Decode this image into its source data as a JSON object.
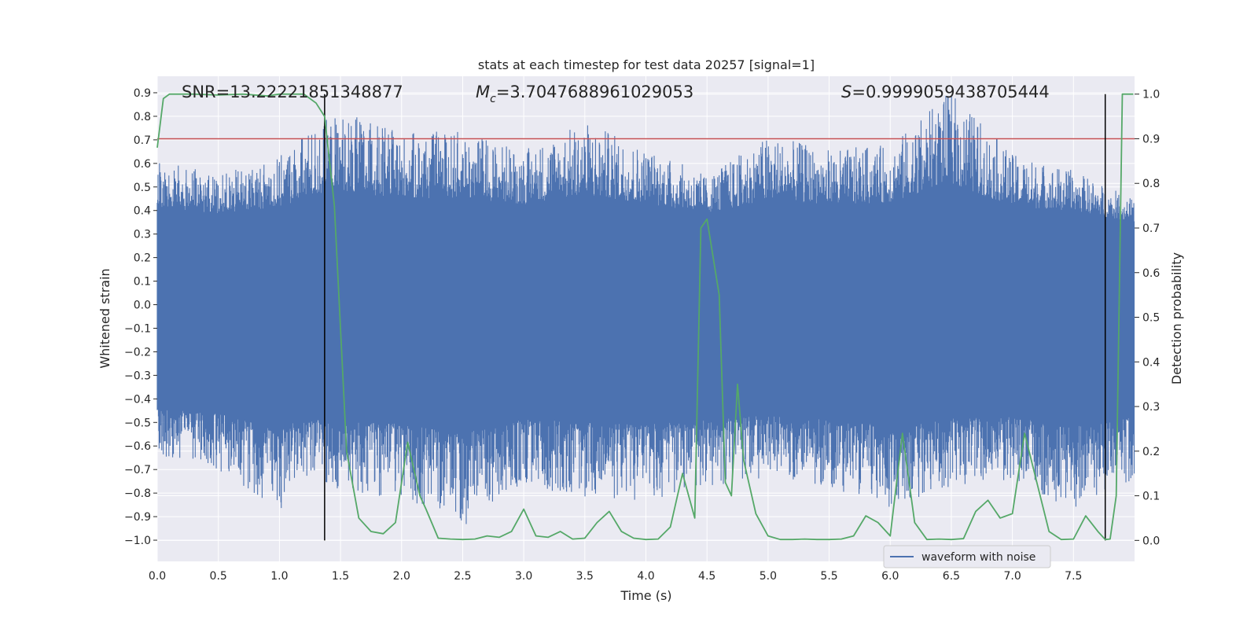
{
  "chart_data": {
    "type": "line",
    "title": "stats at each timestep for test data 20257 [signal=1]",
    "xlabel": "Time (s)",
    "ylabel": "Whitened strain",
    "y2label": "Detection probability",
    "xlim": [
      0.0,
      8.0
    ],
    "ylim": [
      -1.09,
      0.97
    ],
    "y2lim": [
      -0.047,
      1.04
    ],
    "x_ticks": [
      0.0,
      0.5,
      1.0,
      1.5,
      2.0,
      2.5,
      3.0,
      3.5,
      4.0,
      4.5,
      5.0,
      5.5,
      6.0,
      6.5,
      7.0,
      7.5
    ],
    "x_tick_labels": [
      "0.0",
      "0.5",
      "1.0",
      "1.5",
      "2.0",
      "2.5",
      "3.0",
      "3.5",
      "4.0",
      "4.5",
      "5.0",
      "5.5",
      "6.0",
      "6.5",
      "7.0",
      "7.5"
    ],
    "y_ticks": [
      0.9,
      0.8,
      0.7,
      0.6,
      0.5,
      0.4,
      0.3,
      0.2,
      0.1,
      0.0,
      -0.1,
      -0.2,
      -0.3,
      -0.4,
      -0.5,
      -0.6,
      -0.7,
      -0.8,
      -0.9,
      -1.0
    ],
    "y_tick_labels": [
      "0.9",
      "0.8",
      "0.7",
      "0.6",
      "0.5",
      "0.4",
      "0.3",
      "0.2",
      "0.1",
      "0.0",
      "−0.1",
      "−0.2",
      "−0.3",
      "−0.4",
      "−0.5",
      "−0.6",
      "−0.7",
      "−0.8",
      "−0.9",
      "−1.0"
    ],
    "y2_ticks": [
      1.0,
      0.9,
      0.8,
      0.7,
      0.6,
      0.5,
      0.4,
      0.3,
      0.2,
      0.1,
      0.0
    ],
    "y2_tick_labels": [
      "1.0",
      "0.9",
      "0.8",
      "0.7",
      "0.6",
      "0.5",
      "0.4",
      "0.3",
      "0.2",
      "0.1",
      "0.0"
    ],
    "grid": true,
    "annotations": {
      "snr_label": "SNR=13.22221851348877",
      "mc_label": "=3.7047688961029053",
      "s_label": "=0.9999059438705444"
    },
    "threshold_probability": 0.9,
    "signal_bounds_time": [
      1.37,
      7.76
    ],
    "waveform": {
      "name": "waveform with noise",
      "color": "#4c72b0",
      "envelope_time": [
        0.0,
        0.5,
        1.0,
        1.2,
        1.5,
        2.0,
        2.5,
        3.0,
        3.5,
        4.0,
        4.5,
        5.0,
        5.5,
        6.0,
        6.5,
        7.0,
        7.5,
        7.99
      ],
      "upper_envelope": [
        0.62,
        0.55,
        0.63,
        0.73,
        0.82,
        0.73,
        0.74,
        0.66,
        0.78,
        0.67,
        0.55,
        0.72,
        0.66,
        0.68,
        0.91,
        0.64,
        0.57,
        0.45
      ],
      "lower_envelope": [
        -0.65,
        -0.7,
        -0.88,
        -0.72,
        -0.8,
        -0.83,
        -0.95,
        -0.77,
        -0.82,
        -0.84,
        -0.78,
        -0.73,
        -0.78,
        -0.86,
        -0.77,
        -0.75,
        -0.87,
        -0.75
      ]
    },
    "probability": {
      "color": "#55a868",
      "x": [
        0.0,
        0.05,
        0.1,
        0.2,
        0.3,
        0.5,
        0.7,
        0.9,
        1.0,
        1.1,
        1.2,
        1.3,
        1.37,
        1.45,
        1.55,
        1.65,
        1.75,
        1.85,
        1.95,
        2.05,
        2.15,
        2.2,
        2.3,
        2.4,
        2.5,
        2.6,
        2.7,
        2.8,
        2.9,
        3.0,
        3.1,
        3.2,
        3.3,
        3.4,
        3.5,
        3.6,
        3.7,
        3.8,
        3.9,
        4.0,
        4.1,
        4.2,
        4.3,
        4.4,
        4.45,
        4.5,
        4.6,
        4.65,
        4.7,
        4.75,
        4.8,
        4.9,
        5.0,
        5.1,
        5.2,
        5.3,
        5.4,
        5.5,
        5.6,
        5.7,
        5.8,
        5.9,
        6.0,
        6.1,
        6.2,
        6.3,
        6.4,
        6.5,
        6.6,
        6.7,
        6.8,
        6.9,
        7.0,
        7.1,
        7.2,
        7.3,
        7.4,
        7.5,
        7.6,
        7.7,
        7.76,
        7.8,
        7.85,
        7.9,
        7.99
      ],
      "y": [
        0.88,
        0.99,
        1.0,
        1.0,
        1.0,
        0.998,
        1.0,
        0.996,
        1.0,
        1.0,
        1.0,
        0.98,
        0.95,
        0.75,
        0.2,
        0.05,
        0.02,
        0.015,
        0.04,
        0.22,
        0.1,
        0.07,
        0.005,
        0.003,
        0.002,
        0.003,
        0.01,
        0.007,
        0.02,
        0.07,
        0.01,
        0.007,
        0.02,
        0.003,
        0.005,
        0.04,
        0.065,
        0.02,
        0.005,
        0.002,
        0.003,
        0.03,
        0.15,
        0.05,
        0.7,
        0.72,
        0.55,
        0.13,
        0.1,
        0.35,
        0.18,
        0.06,
        0.01,
        0.002,
        0.002,
        0.003,
        0.002,
        0.002,
        0.003,
        0.01,
        0.055,
        0.04,
        0.01,
        0.24,
        0.04,
        0.002,
        0.003,
        0.002,
        0.004,
        0.065,
        0.09,
        0.05,
        0.06,
        0.24,
        0.13,
        0.02,
        0.002,
        0.003,
        0.055,
        0.02,
        0.002,
        0.003,
        0.1,
        1.0,
        1.0
      ]
    },
    "legend_placement": "lower-right"
  }
}
